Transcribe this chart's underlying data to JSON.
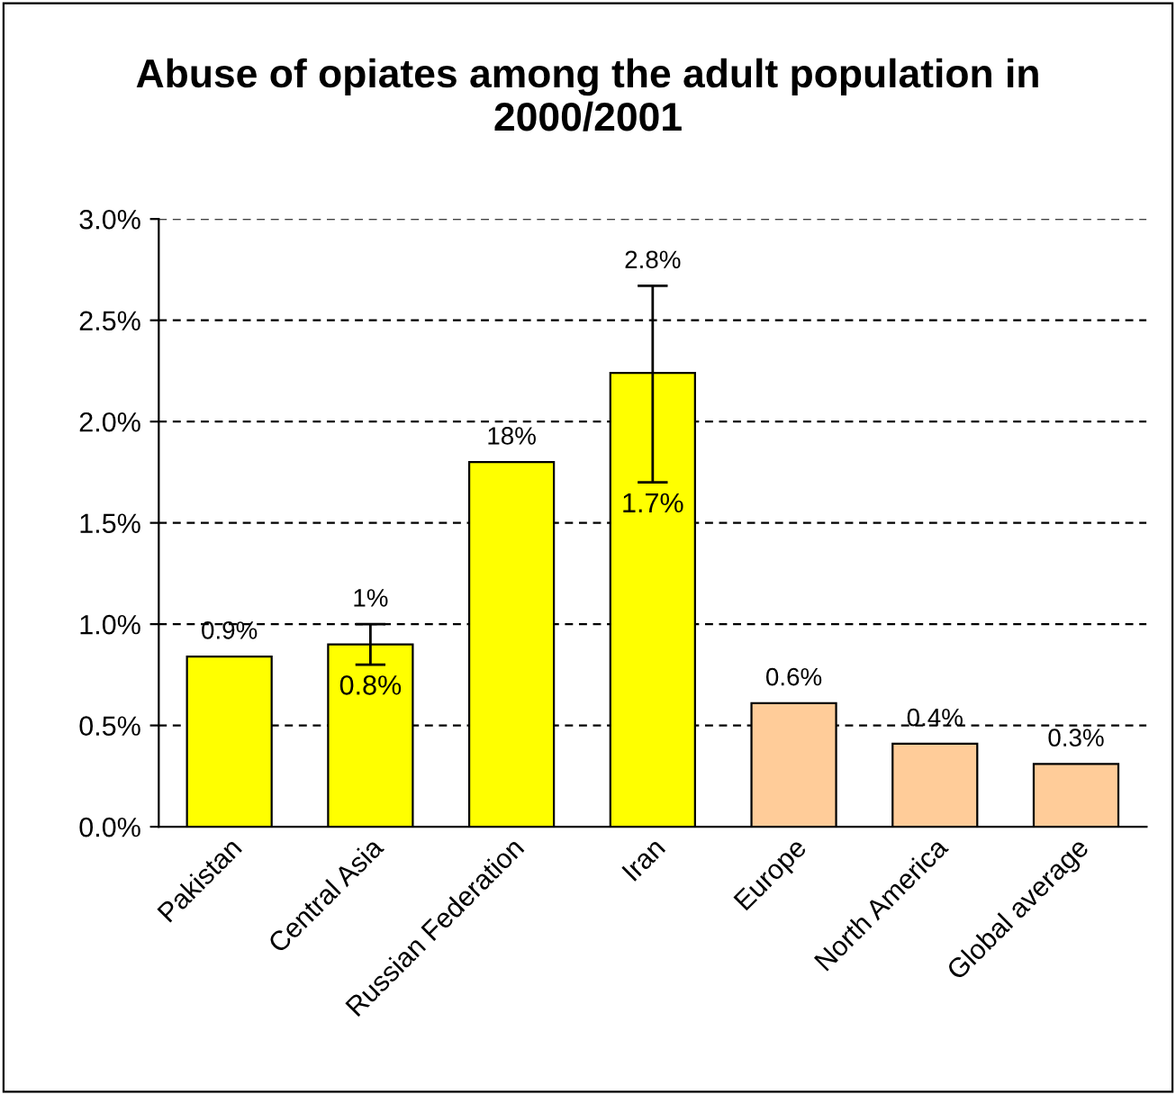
{
  "chart_data": {
    "type": "bar",
    "title": "Abuse of opiates among the adult population in 2000/2001",
    "categories": [
      "Pakistan",
      "Central Asia",
      "Russian Federation",
      "Iran",
      "Europe",
      "North America",
      "Global average"
    ],
    "values": [
      0.84,
      0.9,
      1.8,
      2.24,
      0.61,
      0.41,
      0.31
    ],
    "colors": [
      "#ffff00",
      "#ffff00",
      "#ffff00",
      "#ffff00",
      "#ffcc99",
      "#ffcc99",
      "#ffcc99"
    ],
    "errors": [
      null,
      [
        0.8,
        1.0
      ],
      null,
      [
        1.7,
        2.67
      ],
      null,
      null,
      null
    ],
    "value_labels": [
      null,
      null,
      null,
      null,
      "0.6%",
      "0.4%",
      "0.3%"
    ],
    "annotations": [
      {
        "text": "0.9%",
        "x": "Pakistan",
        "y": 0.84
      },
      {
        "text": "1%",
        "x": "Central Asia",
        "y": 1.0
      },
      {
        "text": "0.8%",
        "x": "Central Asia",
        "y": 0.8
      },
      {
        "text": "18%",
        "x": "Russian Federation",
        "y": 1.8
      },
      {
        "text": "2.8%",
        "x": "Iran",
        "y": 2.67
      },
      {
        "text": "1.7%",
        "x": "Iran",
        "y": 1.7
      }
    ],
    "ylim": [
      0,
      3.0
    ],
    "yticks": [
      {
        "value": 0,
        "label": "0.0%"
      },
      {
        "value": 0.5,
        "label": "0.5%"
      },
      {
        "value": 1.0,
        "label": "1.0%"
      },
      {
        "value": 1.5,
        "label": "1.5%"
      },
      {
        "value": 2.0,
        "label": "2.0%"
      },
      {
        "value": 2.5,
        "label": "2.5%"
      },
      {
        "value": 3.0,
        "label": "3.0%"
      }
    ],
    "grid": "y"
  }
}
